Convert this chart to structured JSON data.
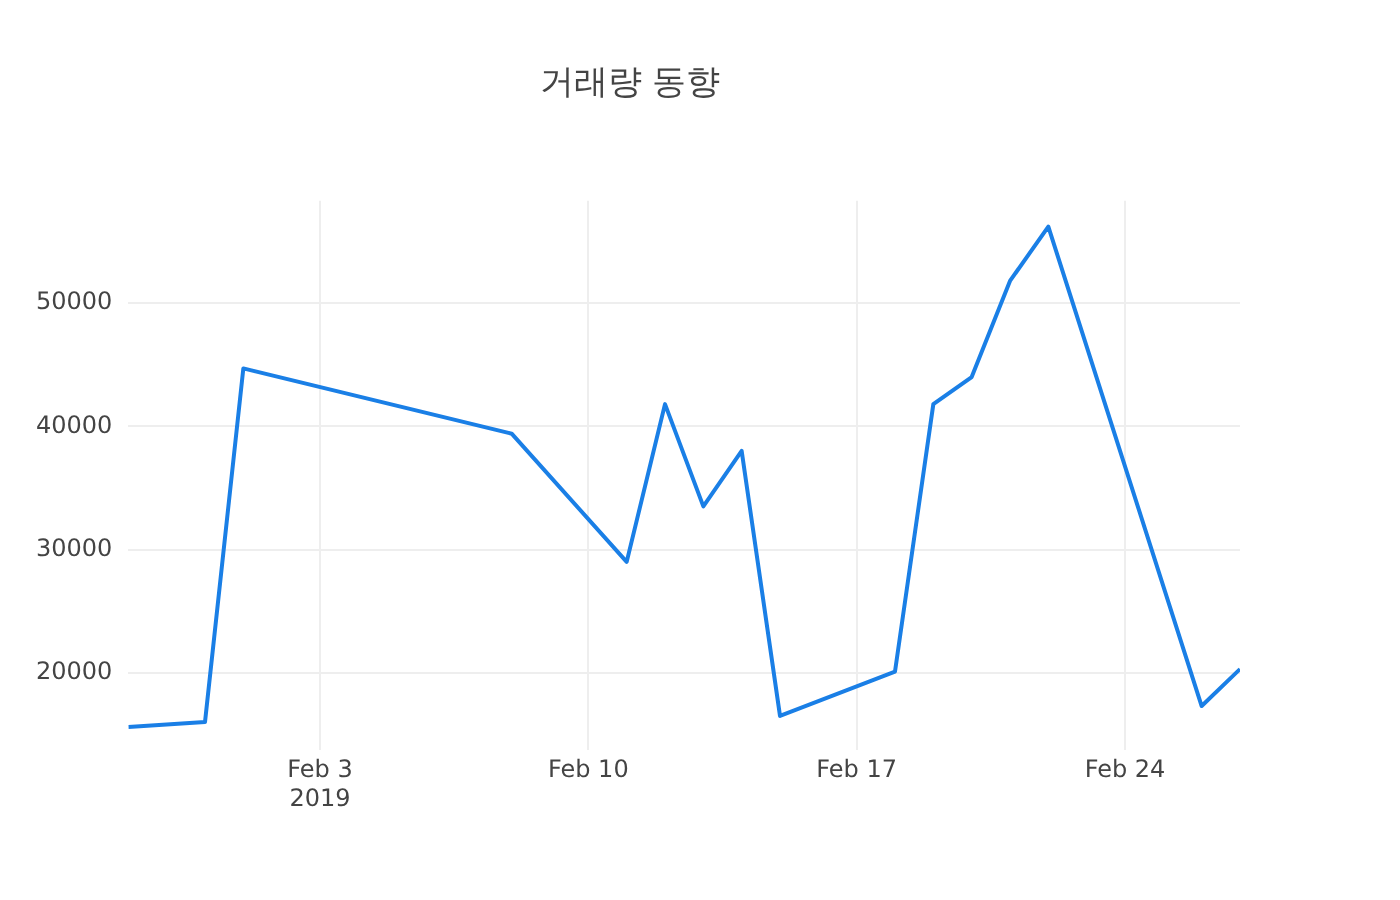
{
  "chart_data": {
    "type": "line",
    "title": "거래량 동향",
    "x": [
      "2019-01-29",
      "2019-01-31",
      "2019-02-01",
      "2019-02-08",
      "2019-02-11",
      "2019-02-12",
      "2019-02-13",
      "2019-02-14",
      "2019-02-15",
      "2019-02-18",
      "2019-02-19",
      "2019-02-20",
      "2019-02-21",
      "2019-02-22",
      "2019-02-26",
      "2019-02-27"
    ],
    "series": [
      {
        "color": "#1a7fe6",
        "values": [
          15600,
          16000,
          44700,
          39400,
          29000,
          41800,
          33500,
          38000,
          16500,
          20100,
          41800,
          44000,
          51800,
          56200,
          17300,
          20300
        ]
      }
    ],
    "xlim": [
      "2019-01-29",
      "2019-02-27"
    ],
    "xticks": [
      {
        "value": "2019-02-03",
        "label": "Feb 3\n2019"
      },
      {
        "value": "2019-02-10",
        "label": "Feb 10"
      },
      {
        "value": "2019-02-17",
        "label": "Feb 17"
      },
      {
        "value": "2019-02-24",
        "label": "Feb 24"
      }
    ],
    "ylim": [
      13700,
      58300
    ],
    "yticks": [
      20000,
      30000,
      40000,
      50000
    ],
    "grid": true,
    "legend": false,
    "marker": "none",
    "line_style": "solid"
  }
}
